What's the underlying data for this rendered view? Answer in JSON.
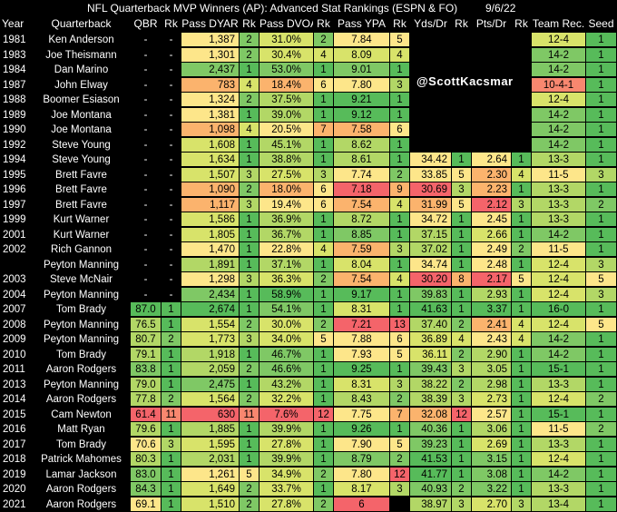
{
  "title": "NFL Quarterback MVP Winners (AP): Advanced Stat Rankings (ESPN & FO)",
  "date": "9/6/22",
  "watermark": "@ScottKacsmar",
  "headers": [
    "Year",
    "Quarterback",
    "QBR",
    "Rk",
    "Pass DYAR",
    "Rk",
    "Pass DVOA",
    "Rk",
    "Pass YPA",
    "Rk",
    "Yds/Dr",
    "Rk",
    "Pts/Dr",
    "Rk",
    "Team Rec.",
    "Seed"
  ],
  "rows": [
    {
      "year": "1981",
      "qb": "Ken Anderson",
      "qbr": "-",
      "qbr_rk": "-",
      "dyar": "1,387",
      "dyar_rk": "2",
      "dvoa": "31.0%",
      "dvoa_rk": "2",
      "ypa": "7.84",
      "ypa_rk": "5",
      "yds_dr": "",
      "yds_rk": "",
      "pts_dr": "",
      "pts_rk": "",
      "rec": "12-4",
      "seed": "1"
    },
    {
      "year": "1983",
      "qb": "Joe Theismann",
      "qbr": "-",
      "qbr_rk": "-",
      "dyar": "1,301",
      "dyar_rk": "2",
      "dvoa": "30.4%",
      "dvoa_rk": "4",
      "ypa": "8.09",
      "ypa_rk": "4",
      "yds_dr": "",
      "yds_rk": "",
      "pts_dr": "",
      "pts_rk": "",
      "rec": "14-2",
      "seed": "1"
    },
    {
      "year": "1984",
      "qb": "Dan Marino",
      "qbr": "-",
      "qbr_rk": "-",
      "dyar": "2,437",
      "dyar_rk": "1",
      "dvoa": "53.0%",
      "dvoa_rk": "1",
      "ypa": "9.01",
      "ypa_rk": "1",
      "yds_dr": "",
      "yds_rk": "",
      "pts_dr": "",
      "pts_rk": "",
      "rec": "14-2",
      "seed": "1"
    },
    {
      "year": "1987",
      "qb": "John Elway",
      "qbr": "-",
      "qbr_rk": "-",
      "dyar": "783",
      "dyar_rk": "4",
      "dvoa": "18.4%",
      "dvoa_rk": "6",
      "ypa": "7.80",
      "ypa_rk": "3",
      "yds_dr": "",
      "yds_rk": "",
      "pts_dr": "",
      "pts_rk": "",
      "rec": "10-4-1",
      "seed": "1"
    },
    {
      "year": "1988",
      "qb": "Boomer Esiason",
      "qbr": "-",
      "qbr_rk": "-",
      "dyar": "1,324",
      "dyar_rk": "2",
      "dvoa": "37.5%",
      "dvoa_rk": "1",
      "ypa": "9.21",
      "ypa_rk": "1",
      "yds_dr": "",
      "yds_rk": "",
      "pts_dr": "",
      "pts_rk": "",
      "rec": "12-4",
      "seed": "1"
    },
    {
      "year": "1989",
      "qb": "Joe Montana",
      "qbr": "-",
      "qbr_rk": "-",
      "dyar": "1,381",
      "dyar_rk": "1",
      "dvoa": "39.0%",
      "dvoa_rk": "1",
      "ypa": "9.12",
      "ypa_rk": "1",
      "yds_dr": "",
      "yds_rk": "",
      "pts_dr": "",
      "pts_rk": "",
      "rec": "14-2",
      "seed": "1"
    },
    {
      "year": "1990",
      "qb": "Joe Montana",
      "qbr": "-",
      "qbr_rk": "-",
      "dyar": "1,098",
      "dyar_rk": "4",
      "dvoa": "20.5%",
      "dvoa_rk": "7",
      "ypa": "7.58",
      "ypa_rk": "6",
      "yds_dr": "",
      "yds_rk": "",
      "pts_dr": "",
      "pts_rk": "",
      "rec": "14-2",
      "seed": "1"
    },
    {
      "year": "1992",
      "qb": "Steve Young",
      "qbr": "-",
      "qbr_rk": "-",
      "dyar": "1,608",
      "dyar_rk": "1",
      "dvoa": "45.1%",
      "dvoa_rk": "1",
      "ypa": "8.62",
      "ypa_rk": "1",
      "yds_dr": "",
      "yds_rk": "",
      "pts_dr": "",
      "pts_rk": "",
      "rec": "14-2",
      "seed": "1"
    },
    {
      "year": "1994",
      "qb": "Steve Young",
      "qbr": "-",
      "qbr_rk": "-",
      "dyar": "1,634",
      "dyar_rk": "1",
      "dvoa": "38.8%",
      "dvoa_rk": "1",
      "ypa": "8.61",
      "ypa_rk": "1",
      "yds_dr": "34.42",
      "yds_rk": "1",
      "pts_dr": "2.64",
      "pts_rk": "1",
      "rec": "13-3",
      "seed": "1"
    },
    {
      "year": "1995",
      "qb": "Brett Favre",
      "qbr": "-",
      "qbr_rk": "-",
      "dyar": "1,507",
      "dyar_rk": "3",
      "dvoa": "27.5%",
      "dvoa_rk": "3",
      "ypa": "7.74",
      "ypa_rk": "2",
      "yds_dr": "33.85",
      "yds_rk": "5",
      "pts_dr": "2.30",
      "pts_rk": "4",
      "rec": "11-5",
      "seed": "3"
    },
    {
      "year": "1996",
      "qb": "Brett Favre",
      "qbr": "-",
      "qbr_rk": "-",
      "dyar": "1,090",
      "dyar_rk": "2",
      "dvoa": "18.0%",
      "dvoa_rk": "6",
      "ypa": "7.18",
      "ypa_rk": "9",
      "yds_dr": "30.69",
      "yds_rk": "3",
      "pts_dr": "2.23",
      "pts_rk": "1",
      "rec": "13-3",
      "seed": "1"
    },
    {
      "year": "1997",
      "qb": "Brett Favre",
      "qbr": "-",
      "qbr_rk": "-",
      "dyar": "1,117",
      "dyar_rk": "3",
      "dvoa": "19.4%",
      "dvoa_rk": "6",
      "ypa": "7.54",
      "ypa_rk": "4",
      "yds_dr": "31.99",
      "yds_rk": "5",
      "pts_dr": "2.12",
      "pts_rk": "3",
      "rec": "13-3",
      "seed": "2"
    },
    {
      "year": "1999",
      "qb": "Kurt Warner",
      "qbr": "-",
      "qbr_rk": "-",
      "dyar": "1,586",
      "dyar_rk": "1",
      "dvoa": "36.9%",
      "dvoa_rk": "1",
      "ypa": "8.72",
      "ypa_rk": "1",
      "yds_dr": "34.72",
      "yds_rk": "1",
      "pts_dr": "2.45",
      "pts_rk": "1",
      "rec": "13-3",
      "seed": "1"
    },
    {
      "year": "2001",
      "qb": "Kurt Warner",
      "qbr": "-",
      "qbr_rk": "-",
      "dyar": "1,805",
      "dyar_rk": "1",
      "dvoa": "36.7%",
      "dvoa_rk": "1",
      "ypa": "8.85",
      "ypa_rk": "1",
      "yds_dr": "37.15",
      "yds_rk": "1",
      "pts_dr": "2.66",
      "pts_rk": "1",
      "rec": "14-2",
      "seed": "1"
    },
    {
      "year": "2002",
      "qb": "Rich Gannon",
      "qbr": "-",
      "qbr_rk": "-",
      "dyar": "1,470",
      "dyar_rk": "1",
      "dvoa": "22.8%",
      "dvoa_rk": "4",
      "ypa": "7.59",
      "ypa_rk": "3",
      "yds_dr": "37.02",
      "yds_rk": "1",
      "pts_dr": "2.49",
      "pts_rk": "2",
      "rec": "11-5",
      "seed": "1"
    },
    {
      "year": "",
      "qb": "Peyton Manning",
      "qbr": "-",
      "qbr_rk": "-",
      "dyar": "1,891",
      "dyar_rk": "1",
      "dvoa": "37.1%",
      "dvoa_rk": "1",
      "ypa": "8.04",
      "ypa_rk": "1",
      "yds_dr": "34.74",
      "yds_rk": "1",
      "pts_dr": "2.48",
      "pts_rk": "1",
      "rec": "12-4",
      "seed": "3"
    },
    {
      "year": "2003",
      "qb": "Steve McNair",
      "qbr": "-",
      "qbr_rk": "-",
      "dyar": "1,298",
      "dyar_rk": "3",
      "dvoa": "36.3%",
      "dvoa_rk": "2",
      "ypa": "7.54",
      "ypa_rk": "4",
      "yds_dr": "30.20",
      "yds_rk": "8",
      "pts_dr": "2.17",
      "pts_rk": "5",
      "rec": "12-4",
      "seed": "5"
    },
    {
      "year": "2004",
      "qb": "Peyton Manning",
      "qbr": "-",
      "qbr_rk": "-",
      "dyar": "2,434",
      "dyar_rk": "1",
      "dvoa": "58.9%",
      "dvoa_rk": "1",
      "ypa": "9.17",
      "ypa_rk": "1",
      "yds_dr": "39.83",
      "yds_rk": "1",
      "pts_dr": "2.93",
      "pts_rk": "1",
      "rec": "12-4",
      "seed": "3"
    },
    {
      "year": "2007",
      "qb": "Tom Brady",
      "qbr": "87.0",
      "qbr_rk": "1",
      "dyar": "2,674",
      "dyar_rk": "1",
      "dvoa": "54.1%",
      "dvoa_rk": "1",
      "ypa": "8.31",
      "ypa_rk": "1",
      "yds_dr": "41.63",
      "yds_rk": "1",
      "pts_dr": "3.37",
      "pts_rk": "1",
      "rec": "16-0",
      "seed": "1"
    },
    {
      "year": "2008",
      "qb": "Peyton Manning",
      "qbr": "76.5",
      "qbr_rk": "1",
      "dyar": "1,554",
      "dyar_rk": "2",
      "dvoa": "30.0%",
      "dvoa_rk": "2",
      "ypa": "7.21",
      "ypa_rk": "13",
      "yds_dr": "37.40",
      "yds_rk": "2",
      "pts_dr": "2.41",
      "pts_rk": "4",
      "rec": "12-4",
      "seed": "5"
    },
    {
      "year": "2009",
      "qb": "Peyton Manning",
      "qbr": "80.7",
      "qbr_rk": "2",
      "dyar": "1,773",
      "dyar_rk": "3",
      "dvoa": "34.0%",
      "dvoa_rk": "5",
      "ypa": "7.88",
      "ypa_rk": "6",
      "yds_dr": "36.89",
      "yds_rk": "4",
      "pts_dr": "2.43",
      "pts_rk": "4",
      "rec": "14-2",
      "seed": "1"
    },
    {
      "year": "2010",
      "qb": "Tom Brady",
      "qbr": "79.1",
      "qbr_rk": "1",
      "dyar": "1,918",
      "dyar_rk": "1",
      "dvoa": "46.7%",
      "dvoa_rk": "1",
      "ypa": "7.93",
      "ypa_rk": "5",
      "yds_dr": "36.11",
      "yds_rk": "2",
      "pts_dr": "2.90",
      "pts_rk": "1",
      "rec": "14-2",
      "seed": "1"
    },
    {
      "year": "2011",
      "qb": "Aaron Rodgers",
      "qbr": "83.8",
      "qbr_rk": "1",
      "dyar": "2,059",
      "dyar_rk": "2",
      "dvoa": "46.6%",
      "dvoa_rk": "1",
      "ypa": "9.25",
      "ypa_rk": "1",
      "yds_dr": "39.43",
      "yds_rk": "3",
      "pts_dr": "3.05",
      "pts_rk": "1",
      "rec": "15-1",
      "seed": "1"
    },
    {
      "year": "2013",
      "qb": "Peyton Manning",
      "qbr": "79.0",
      "qbr_rk": "1",
      "dyar": "2,475",
      "dyar_rk": "1",
      "dvoa": "43.2%",
      "dvoa_rk": "1",
      "ypa": "8.31",
      "ypa_rk": "3",
      "yds_dr": "38.22",
      "yds_rk": "2",
      "pts_dr": "2.98",
      "pts_rk": "1",
      "rec": "13-3",
      "seed": "1"
    },
    {
      "year": "2014",
      "qb": "Aaron Rodgers",
      "qbr": "77.8",
      "qbr_rk": "2",
      "dyar": "1,564",
      "dyar_rk": "2",
      "dvoa": "32.2%",
      "dvoa_rk": "1",
      "ypa": "8.43",
      "ypa_rk": "2",
      "yds_dr": "38.39",
      "yds_rk": "3",
      "pts_dr": "2.73",
      "pts_rk": "1",
      "rec": "12-4",
      "seed": "2"
    },
    {
      "year": "2015",
      "qb": "Cam Newton",
      "qbr": "61.4",
      "qbr_rk": "11",
      "dyar": "630",
      "dyar_rk": "11",
      "dvoa": "7.6%",
      "dvoa_rk": "12",
      "ypa": "7.75",
      "ypa_rk": "7",
      "yds_dr": "32.08",
      "yds_rk": "12",
      "pts_dr": "2.57",
      "pts_rk": "1",
      "rec": "15-1",
      "seed": "1"
    },
    {
      "year": "2016",
      "qb": "Matt Ryan",
      "qbr": "79.6",
      "qbr_rk": "1",
      "dyar": "1,885",
      "dyar_rk": "1",
      "dvoa": "39.9%",
      "dvoa_rk": "1",
      "ypa": "9.26",
      "ypa_rk": "1",
      "yds_dr": "40.36",
      "yds_rk": "1",
      "pts_dr": "3.06",
      "pts_rk": "1",
      "rec": "11-5",
      "seed": "2"
    },
    {
      "year": "2017",
      "qb": "Tom Brady",
      "qbr": "70.6",
      "qbr_rk": "3",
      "dyar": "1,595",
      "dyar_rk": "1",
      "dvoa": "27.8%",
      "dvoa_rk": "1",
      "ypa": "7.90",
      "ypa_rk": "5",
      "yds_dr": "39.23",
      "yds_rk": "1",
      "pts_dr": "2.69",
      "pts_rk": "1",
      "rec": "13-3",
      "seed": "1"
    },
    {
      "year": "2018",
      "qb": "Patrick Mahomes",
      "qbr": "80.3",
      "qbr_rk": "1",
      "dyar": "2,031",
      "dyar_rk": "1",
      "dvoa": "39.9%",
      "dvoa_rk": "1",
      "ypa": "8.79",
      "ypa_rk": "2",
      "yds_dr": "41.53",
      "yds_rk": "1",
      "pts_dr": "3.15",
      "pts_rk": "1",
      "rec": "12-4",
      "seed": "1"
    },
    {
      "year": "2019",
      "qb": "Lamar Jackson",
      "qbr": "83.0",
      "qbr_rk": "1",
      "dyar": "1,261",
      "dyar_rk": "5",
      "dvoa": "34.9%",
      "dvoa_rk": "2",
      "ypa": "7.80",
      "ypa_rk": "12",
      "yds_dr": "41.77",
      "yds_rk": "1",
      "pts_dr": "3.08",
      "pts_rk": "1",
      "rec": "14-2",
      "seed": "1"
    },
    {
      "year": "2020",
      "qb": "Aaron Rodgers",
      "qbr": "84.3",
      "qbr_rk": "1",
      "dyar": "1,649",
      "dyar_rk": "2",
      "dvoa": "33.7%",
      "dvoa_rk": "1",
      "ypa": "8.17",
      "ypa_rk": "3",
      "yds_dr": "40.93",
      "yds_rk": "2",
      "pts_dr": "3.22",
      "pts_rk": "1",
      "rec": "13-3",
      "seed": "1"
    },
    {
      "year": "2021",
      "qb": "Aaron Rodgers",
      "qbr": "69.1",
      "qbr_rk": "1",
      "dyar": "1,510",
      "dyar_rk": "2",
      "dvoa": "27.8%",
      "dvoa_rk": "2",
      "ypa": "6",
      "ypa_rk": "",
      "yds_dr": "38.97",
      "yds_rk": "3",
      "pts_dr": "2.70",
      "pts_rk": "3",
      "rec": "13-4",
      "seed": "1"
    }
  ],
  "colors": {
    "green_dark": "#57bb5a",
    "green": "#7fc865",
    "green_light": "#b2d766",
    "yellow_green": "#d8e36a",
    "yellow": "#fde68a",
    "orange": "#fbb36d",
    "red_light": "#f8876f",
    "red": "#f4646a",
    "dark": "#000000"
  }
}
